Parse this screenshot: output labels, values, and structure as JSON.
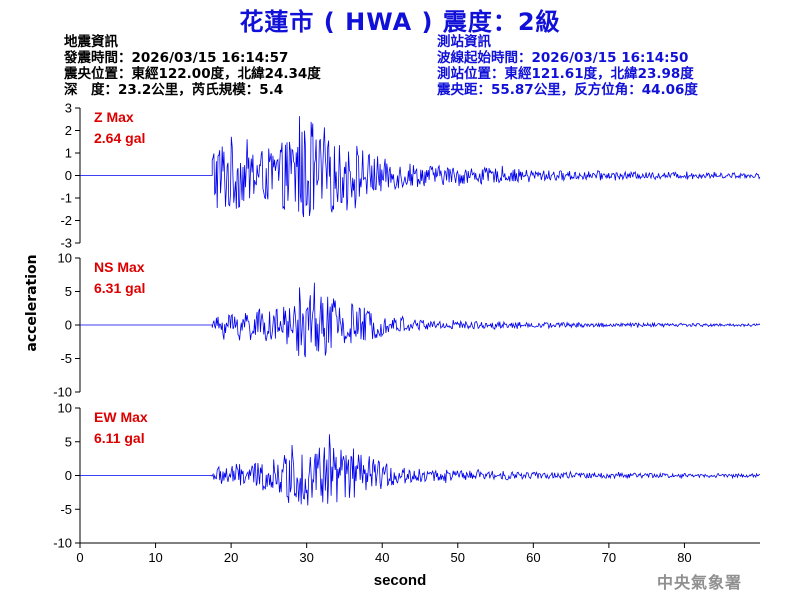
{
  "title": "花蓮市 ( HWA ) 震度：2級",
  "earthquake_info": {
    "heading": "地震資訊",
    "origin_time": "發震時間：2026/03/15 16:14:57",
    "epicenter": "震央位置：東經122.00度，北緯24.34度",
    "depth_magnitude": "深　度：23.2公里，芮氏規模：5.4"
  },
  "station_info": {
    "heading": "測站資訊",
    "wave_start": "波線起始時間：2026/03/15 16:14:50",
    "location": "測站位置：東經121.61度，北緯23.98度",
    "distance_azimuth": "震央距：55.87公里，反方位角：44.06度"
  },
  "watermark": "中央氣象署",
  "colors": {
    "trace": "#0000ee",
    "title": "#1010d8",
    "max_label": "#dd0000",
    "axis": "#000000"
  },
  "chart_data": [
    {
      "type": "line",
      "component": "Z",
      "max_label": "Z Max",
      "max_value": "2.64 gal",
      "peak": 2.64,
      "ylim": [
        -3,
        3
      ],
      "yticks": [
        "-3",
        "-2",
        "-1",
        "0",
        "1",
        "2",
        "3"
      ],
      "xlim": [
        0,
        90
      ],
      "xlabel": "",
      "ylabel": "acceleration",
      "onset": 17.5,
      "envelope": [
        [
          17.5,
          1.6
        ],
        [
          19,
          1.7
        ],
        [
          20,
          1.8
        ],
        [
          22,
          1.2
        ],
        [
          25,
          1.2
        ],
        [
          27,
          1.5
        ],
        [
          29,
          2.3
        ],
        [
          31,
          1.9
        ],
        [
          33,
          1.6
        ],
        [
          35,
          1.3
        ],
        [
          37,
          1.1
        ],
        [
          39,
          0.95
        ],
        [
          41,
          0.65
        ],
        [
          45,
          0.5
        ],
        [
          50,
          0.38
        ],
        [
          55,
          0.33
        ],
        [
          60,
          0.25
        ],
        [
          70,
          0.17
        ],
        [
          80,
          0.13
        ],
        [
          90,
          0.1
        ]
      ]
    },
    {
      "type": "line",
      "component": "NS",
      "max_label": "NS Max",
      "max_value": "6.31 gal",
      "peak": 6.31,
      "ylim": [
        -10,
        10
      ],
      "yticks": [
        "-10",
        "-5",
        "0",
        "5",
        "10"
      ],
      "xlim": [
        0,
        90
      ],
      "xlabel": "",
      "ylabel": "acceleration",
      "onset": 17.5,
      "envelope": [
        [
          17.5,
          0.5
        ],
        [
          18.5,
          1.6
        ],
        [
          20,
          2.0
        ],
        [
          22,
          2.6
        ],
        [
          24,
          2.0
        ],
        [
          26,
          2.3
        ],
        [
          28,
          3.5
        ],
        [
          30,
          5.0
        ],
        [
          32,
          4.8
        ],
        [
          34,
          4.0
        ],
        [
          35,
          4.5
        ],
        [
          36,
          3.3
        ],
        [
          38,
          2.5
        ],
        [
          40,
          1.6
        ],
        [
          42,
          1.1
        ],
        [
          45,
          0.9
        ],
        [
          50,
          0.6
        ],
        [
          55,
          0.5
        ],
        [
          60,
          0.4
        ],
        [
          70,
          0.32
        ],
        [
          80,
          0.25
        ],
        [
          90,
          0.2
        ]
      ]
    },
    {
      "type": "line",
      "component": "EW",
      "max_label": "EW Max",
      "max_value": "6.11 gal",
      "peak": 6.11,
      "ylim": [
        -10,
        10
      ],
      "yticks": [
        "-10",
        "-5",
        "0",
        "5",
        "10"
      ],
      "xlim": [
        0,
        90
      ],
      "xlabel": "second",
      "ylabel": "acceleration",
      "xticks": [
        "0",
        "10",
        "20",
        "30",
        "40",
        "50",
        "60",
        "70",
        "80"
      ],
      "onset": 17.5,
      "envelope": [
        [
          17.5,
          0.5
        ],
        [
          18.5,
          1.5
        ],
        [
          20,
          1.8
        ],
        [
          22,
          1.6
        ],
        [
          24,
          2.0
        ],
        [
          26,
          2.5
        ],
        [
          28,
          3.5
        ],
        [
          30,
          5.0
        ],
        [
          32,
          4.8
        ],
        [
          34,
          4.5
        ],
        [
          36,
          3.6
        ],
        [
          38,
          2.8
        ],
        [
          40,
          2.0
        ],
        [
          42,
          1.3
        ],
        [
          45,
          1.0
        ],
        [
          50,
          0.8
        ],
        [
          55,
          0.6
        ],
        [
          60,
          0.5
        ],
        [
          70,
          0.4
        ],
        [
          80,
          0.3
        ],
        [
          90,
          0.25
        ]
      ]
    }
  ]
}
